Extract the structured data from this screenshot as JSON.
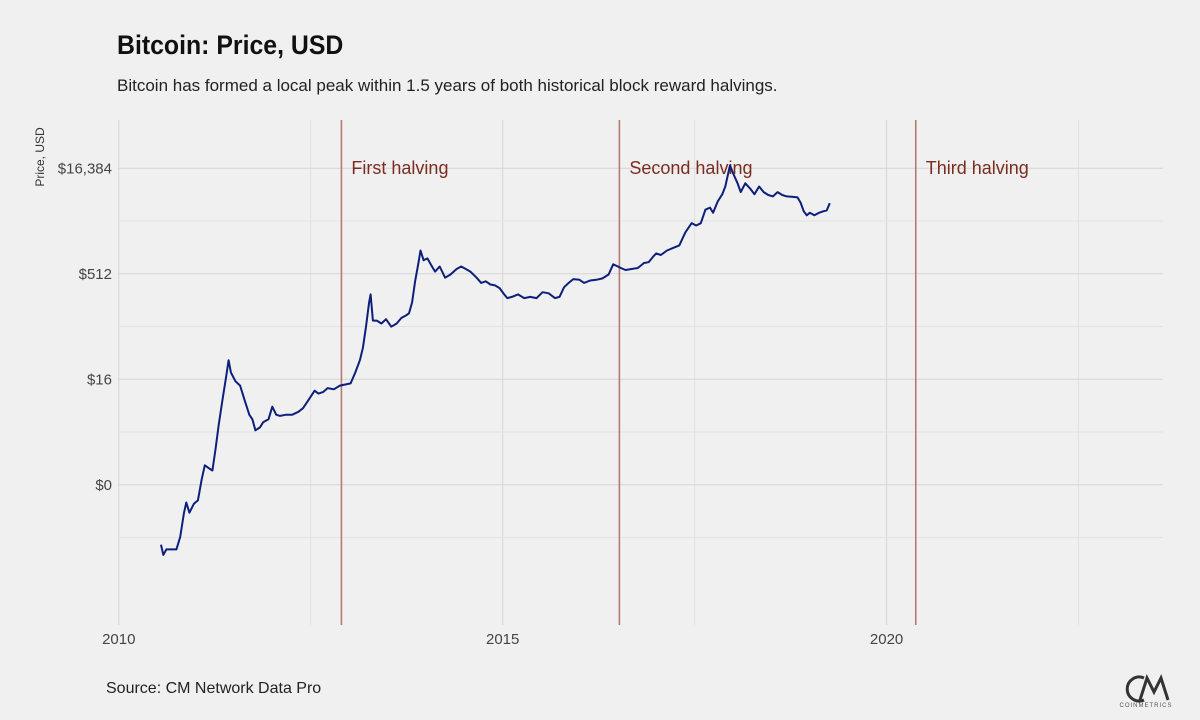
{
  "chart_data": {
    "type": "line",
    "title": "Bitcoin: Price, USD",
    "subtitle": "Bitcoin has formed a local peak within 1.5 years of both historical block reward halvings.",
    "ylabel": "Price, USD",
    "xlabel": "",
    "y_scale": "log2",
    "x_ticks": [
      2010,
      2015,
      2020
    ],
    "y_ticks": [
      {
        "value": 0.5,
        "label": "$0"
      },
      {
        "value": 16,
        "label": "$16"
      },
      {
        "value": 512,
        "label": "$512"
      },
      {
        "value": 16384,
        "label": "$16,384"
      }
    ],
    "xlim": [
      2009.99,
      2023.6
    ],
    "ylim": [
      0.005,
      80000
    ],
    "grid": true,
    "series": [
      {
        "color": "#0d1f7a",
        "points": [
          [
            2010.55,
            0.07
          ],
          [
            2010.58,
            0.05
          ],
          [
            2010.62,
            0.06
          ],
          [
            2010.7,
            0.06
          ],
          [
            2010.75,
            0.06
          ],
          [
            2010.8,
            0.09
          ],
          [
            2010.85,
            0.2
          ],
          [
            2010.88,
            0.28
          ],
          [
            2010.92,
            0.2
          ],
          [
            2010.98,
            0.27
          ],
          [
            2011.03,
            0.3
          ],
          [
            2011.08,
            0.6
          ],
          [
            2011.12,
            0.95
          ],
          [
            2011.18,
            0.85
          ],
          [
            2011.22,
            0.8
          ],
          [
            2011.26,
            1.6
          ],
          [
            2011.3,
            3.5
          ],
          [
            2011.35,
            8
          ],
          [
            2011.4,
            18
          ],
          [
            2011.43,
            30
          ],
          [
            2011.46,
            20
          ],
          [
            2011.52,
            15
          ],
          [
            2011.58,
            13
          ],
          [
            2011.64,
            8
          ],
          [
            2011.7,
            5
          ],
          [
            2011.74,
            4.3
          ],
          [
            2011.78,
            3
          ],
          [
            2011.84,
            3.3
          ],
          [
            2011.88,
            3.9
          ],
          [
            2011.95,
            4.3
          ],
          [
            2012.0,
            6.5
          ],
          [
            2012.05,
            5
          ],
          [
            2012.1,
            4.8
          ],
          [
            2012.18,
            5
          ],
          [
            2012.26,
            5
          ],
          [
            2012.34,
            5.5
          ],
          [
            2012.4,
            6.2
          ],
          [
            2012.45,
            7.5
          ],
          [
            2012.55,
            11
          ],
          [
            2012.6,
            10
          ],
          [
            2012.66,
            10.5
          ],
          [
            2012.72,
            12
          ],
          [
            2012.8,
            11.5
          ],
          [
            2012.88,
            13
          ],
          [
            2012.95,
            13.5
          ],
          [
            2013.02,
            14
          ],
          [
            2013.08,
            20
          ],
          [
            2013.14,
            30
          ],
          [
            2013.18,
            45
          ],
          [
            2013.22,
            90
          ],
          [
            2013.26,
            200
          ],
          [
            2013.28,
            260
          ],
          [
            2013.31,
            110
          ],
          [
            2013.36,
            110
          ],
          [
            2013.42,
            100
          ],
          [
            2013.48,
            115
          ],
          [
            2013.55,
            90
          ],
          [
            2013.62,
            100
          ],
          [
            2013.68,
            120
          ],
          [
            2013.74,
            130
          ],
          [
            2013.78,
            140
          ],
          [
            2013.82,
            200
          ],
          [
            2013.86,
            400
          ],
          [
            2013.9,
            700
          ],
          [
            2013.93,
            1100
          ],
          [
            2013.97,
            800
          ],
          [
            2014.02,
            850
          ],
          [
            2014.08,
            650
          ],
          [
            2014.12,
            550
          ],
          [
            2014.18,
            650
          ],
          [
            2014.25,
            450
          ],
          [
            2014.32,
            500
          ],
          [
            2014.4,
            600
          ],
          [
            2014.46,
            650
          ],
          [
            2014.52,
            600
          ],
          [
            2014.58,
            550
          ],
          [
            2014.66,
            450
          ],
          [
            2014.72,
            380
          ],
          [
            2014.78,
            400
          ],
          [
            2014.84,
            360
          ],
          [
            2014.9,
            350
          ],
          [
            2014.96,
            320
          ],
          [
            2015.02,
            260
          ],
          [
            2015.06,
            230
          ],
          [
            2015.12,
            240
          ],
          [
            2015.2,
            260
          ],
          [
            2015.28,
            230
          ],
          [
            2015.36,
            240
          ],
          [
            2015.44,
            230
          ],
          [
            2015.52,
            280
          ],
          [
            2015.6,
            270
          ],
          [
            2015.68,
            230
          ],
          [
            2015.74,
            240
          ],
          [
            2015.8,
            330
          ],
          [
            2015.86,
            380
          ],
          [
            2015.92,
            430
          ],
          [
            2016.0,
            420
          ],
          [
            2016.06,
            380
          ],
          [
            2016.14,
            410
          ],
          [
            2016.22,
            420
          ],
          [
            2016.3,
            440
          ],
          [
            2016.38,
            500
          ],
          [
            2016.44,
            700
          ],
          [
            2016.49,
            660
          ],
          [
            2016.54,
            620
          ],
          [
            2016.6,
            580
          ],
          [
            2016.68,
            600
          ],
          [
            2016.76,
            620
          ],
          [
            2016.84,
            730
          ],
          [
            2016.9,
            750
          ],
          [
            2016.96,
            900
          ],
          [
            2017.0,
            1000
          ],
          [
            2017.06,
            950
          ],
          [
            2017.14,
            1100
          ],
          [
            2017.22,
            1200
          ],
          [
            2017.3,
            1300
          ],
          [
            2017.38,
            2000
          ],
          [
            2017.46,
            2700
          ],
          [
            2017.52,
            2500
          ],
          [
            2017.58,
            2700
          ],
          [
            2017.64,
            4200
          ],
          [
            2017.7,
            4500
          ],
          [
            2017.74,
            3800
          ],
          [
            2017.8,
            5500
          ],
          [
            2017.86,
            7000
          ],
          [
            2017.9,
            9000
          ],
          [
            2017.96,
            18000
          ],
          [
            2018.0,
            14000
          ],
          [
            2018.06,
            10000
          ],
          [
            2018.1,
            7500
          ],
          [
            2018.16,
            10000
          ],
          [
            2018.22,
            8500
          ],
          [
            2018.28,
            7000
          ],
          [
            2018.34,
            9000
          ],
          [
            2018.4,
            7500
          ],
          [
            2018.46,
            6800
          ],
          [
            2018.52,
            6500
          ],
          [
            2018.58,
            7500
          ],
          [
            2018.64,
            6800
          ],
          [
            2018.7,
            6500
          ],
          [
            2018.78,
            6400
          ],
          [
            2018.84,
            6300
          ],
          [
            2018.88,
            5300
          ],
          [
            2018.92,
            4000
          ],
          [
            2018.96,
            3500
          ],
          [
            2019.0,
            3800
          ],
          [
            2019.06,
            3500
          ],
          [
            2019.12,
            3800
          ],
          [
            2019.18,
            4000
          ],
          [
            2019.22,
            4100
          ],
          [
            2019.26,
            5200
          ]
        ]
      }
    ],
    "events": [
      {
        "date": 2012.9,
        "label": "First halving"
      },
      {
        "date": 2016.52,
        "label": "Second halving"
      },
      {
        "date": 2020.38,
        "label": "Third halving"
      }
    ]
  },
  "caption": "Source: CM Network Data Pro",
  "logo": {
    "mark": "CM",
    "text": "COINMETRICS"
  }
}
